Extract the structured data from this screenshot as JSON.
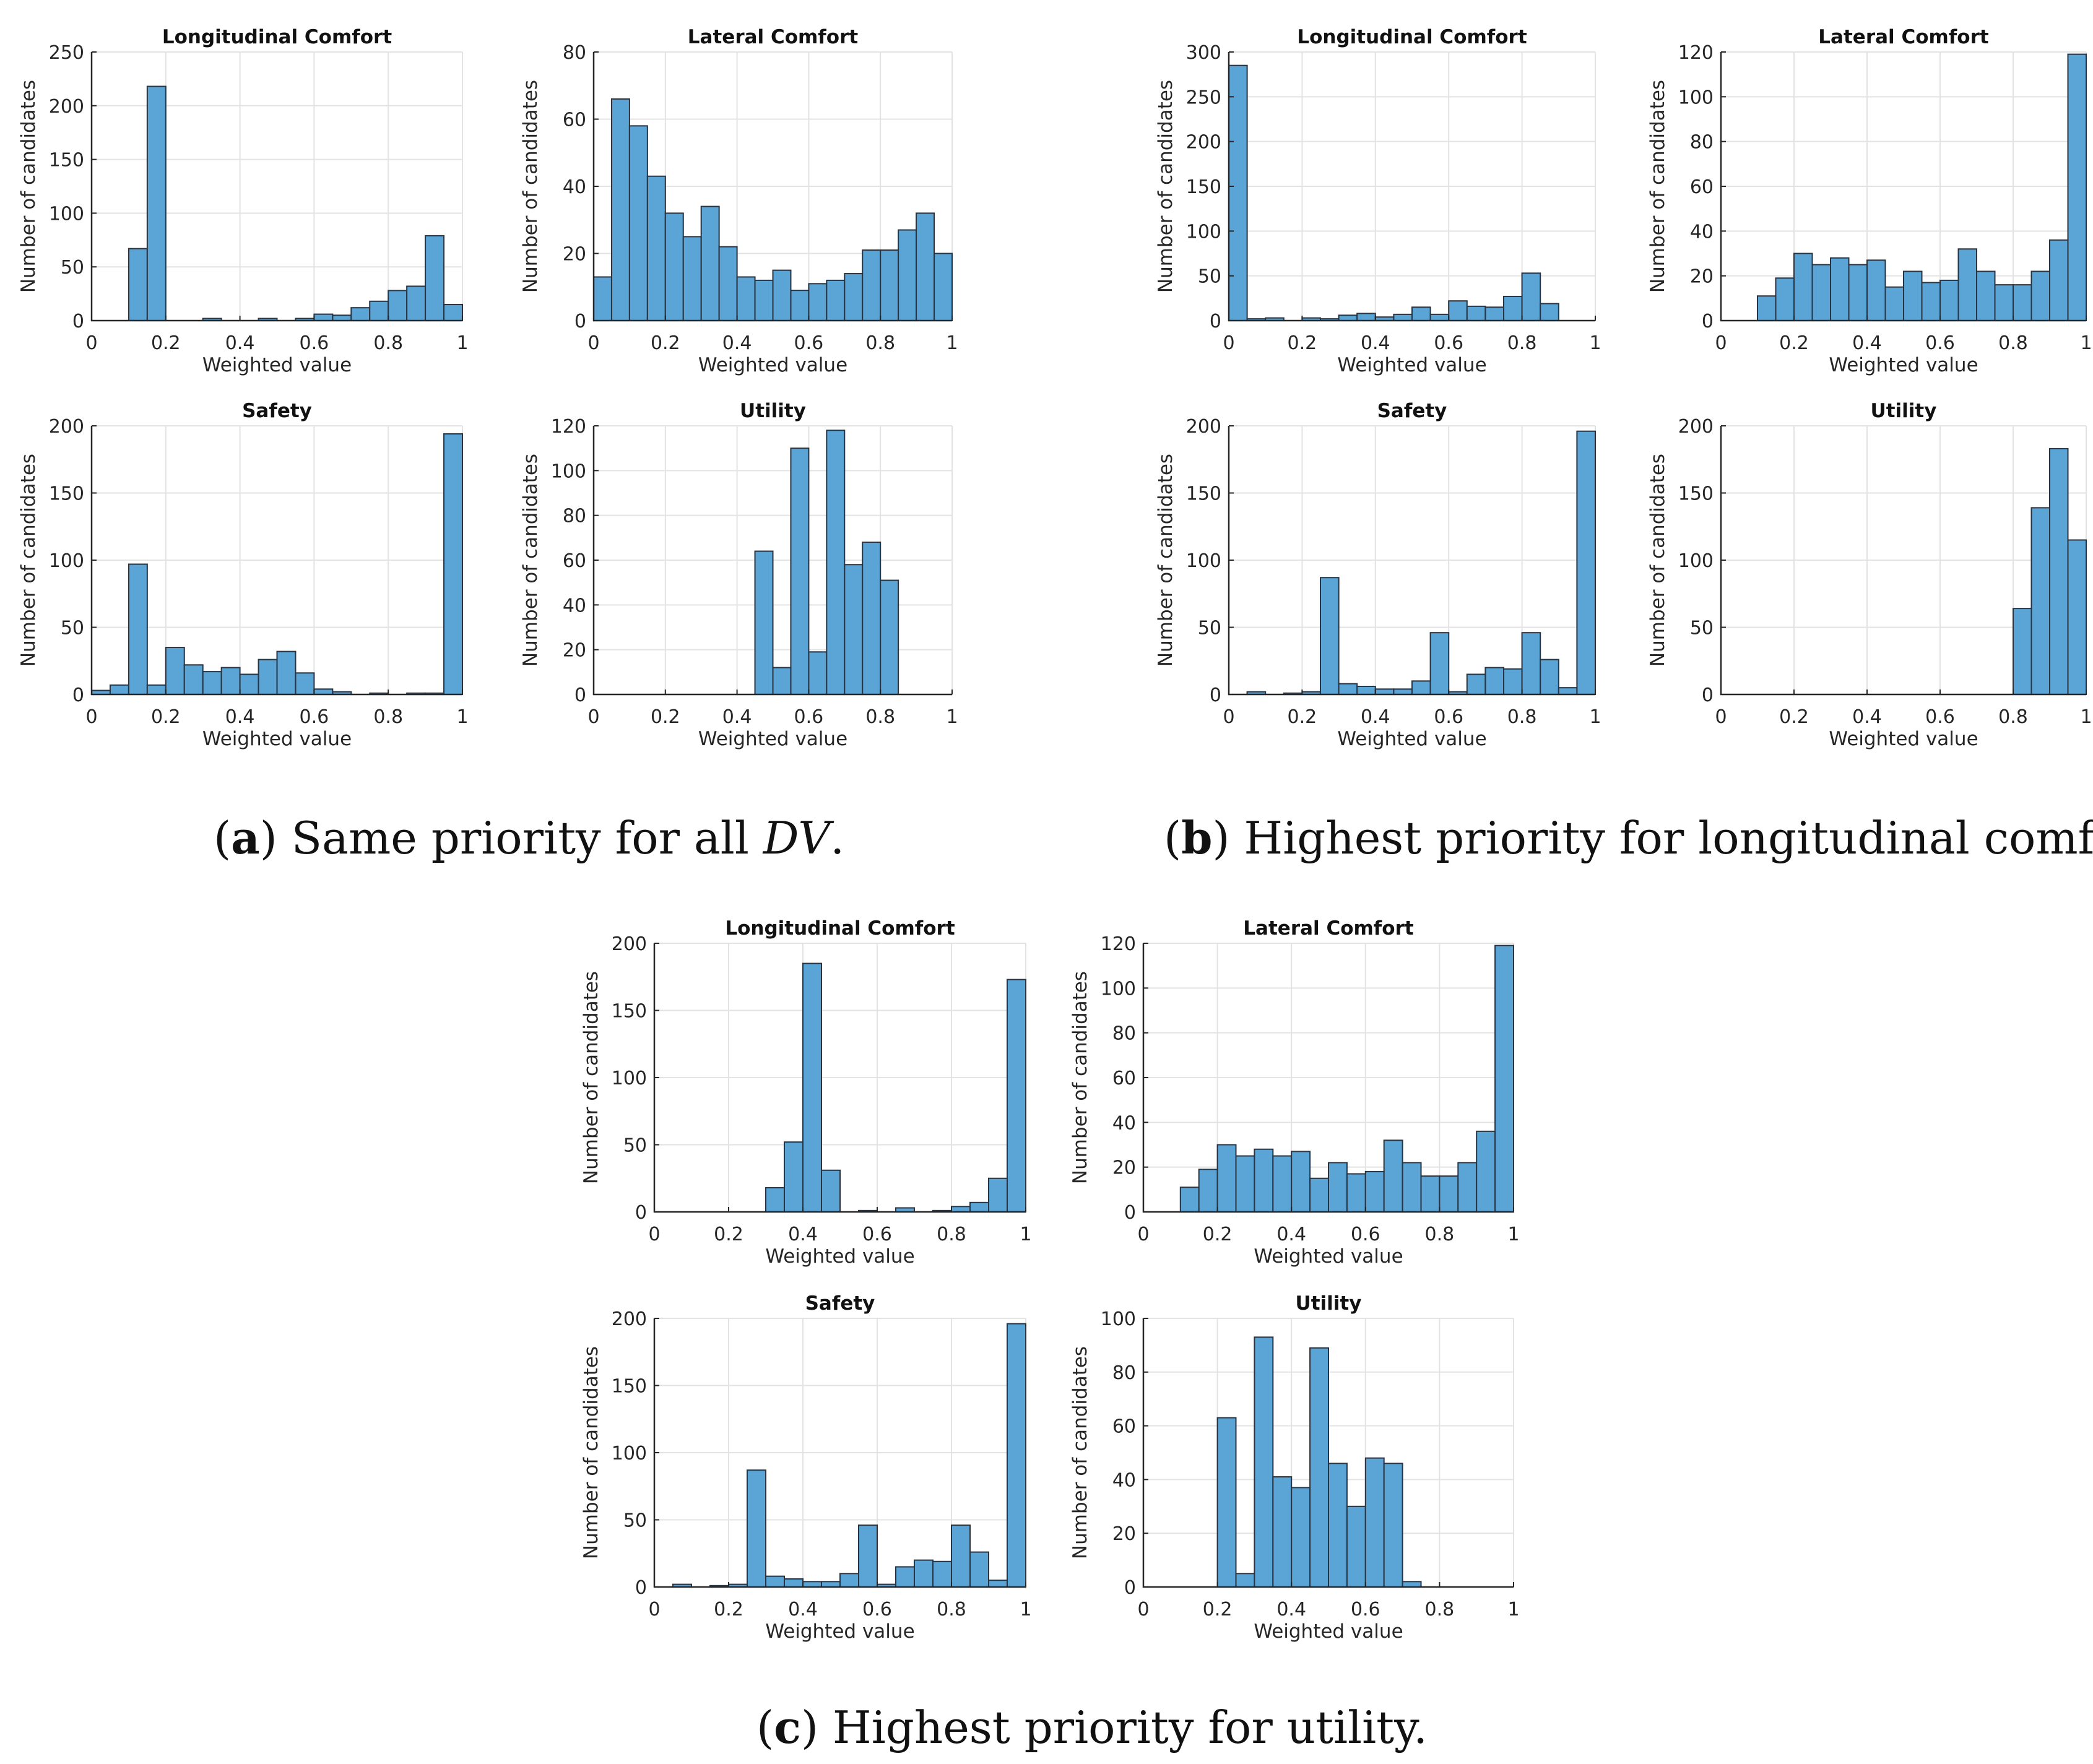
{
  "style": {
    "bar_fill": "#5ba4d6",
    "bar_stroke": "#2a3440",
    "grid": "#e3e3e3",
    "axis": "#262626",
    "text": "#262626"
  },
  "captions": {
    "a": {
      "letter": "a",
      "text": "Same priority for all",
      "math": "DV",
      "end": "."
    },
    "b": {
      "letter": "b",
      "text": "Highest priority for longitudinal comfort."
    },
    "c": {
      "letter": "c",
      "text": "Highest priority for utility."
    }
  },
  "chart_data": [
    {
      "id": "a-longitudinal",
      "group": "a",
      "type": "bar",
      "title": "Longitudinal Comfort",
      "xlabel": "Weighted value",
      "ylabel": "Number of candidates",
      "xlim": [
        0,
        1
      ],
      "ylim": [
        0,
        250
      ],
      "xticks": [
        0,
        0.2,
        0.4,
        0.6,
        0.8,
        1
      ],
      "yticks": [
        0,
        50,
        100,
        150,
        200,
        250
      ],
      "bin_start": 0,
      "bin_width": 0.05,
      "values": [
        0,
        0,
        67,
        218,
        0,
        0,
        2,
        0,
        0,
        2,
        0,
        2,
        6,
        5,
        12,
        18,
        28,
        32,
        79,
        15
      ]
    },
    {
      "id": "a-lateral",
      "group": "a",
      "type": "bar",
      "title": "Lateral Comfort",
      "xlabel": "Weighted value",
      "ylabel": "Number of candidates",
      "xlim": [
        0,
        1
      ],
      "ylim": [
        0,
        80
      ],
      "xticks": [
        0,
        0.2,
        0.4,
        0.6,
        0.8,
        1
      ],
      "yticks": [
        0,
        20,
        40,
        60,
        80
      ],
      "bin_start": 0,
      "bin_width": 0.05,
      "values": [
        13,
        66,
        58,
        43,
        32,
        25,
        34,
        22,
        13,
        12,
        15,
        9,
        11,
        12,
        14,
        21,
        21,
        27,
        32,
        20
      ]
    },
    {
      "id": "a-safety",
      "group": "a",
      "type": "bar",
      "title": "Safety",
      "xlabel": "Weighted value",
      "ylabel": "Number of candidates",
      "xlim": [
        0,
        1
      ],
      "ylim": [
        0,
        200
      ],
      "xticks": [
        0,
        0.2,
        0.4,
        0.6,
        0.8,
        1
      ],
      "yticks": [
        0,
        50,
        100,
        150,
        200
      ],
      "bin_start": 0,
      "bin_width": 0.05,
      "values": [
        3,
        7,
        97,
        7,
        35,
        22,
        17,
        20,
        15,
        26,
        32,
        16,
        4,
        2,
        0,
        1,
        0,
        1,
        1,
        194
      ]
    },
    {
      "id": "a-utility",
      "group": "a",
      "type": "bar",
      "title": "Utility",
      "xlabel": "Weighted value",
      "ylabel": "Number of candidates",
      "xlim": [
        0,
        1
      ],
      "ylim": [
        0,
        120
      ],
      "xticks": [
        0,
        0.2,
        0.4,
        0.6,
        0.8,
        1
      ],
      "yticks": [
        0,
        20,
        40,
        60,
        80,
        100,
        120
      ],
      "bin_start": 0,
      "bin_width": 0.05,
      "values": [
        0,
        0,
        0,
        0,
        0,
        0,
        0,
        0,
        0,
        64,
        12,
        110,
        19,
        118,
        58,
        68,
        51,
        0,
        0,
        0
      ]
    },
    {
      "id": "b-longitudinal",
      "group": "b",
      "type": "bar",
      "title": "Longitudinal Comfort",
      "xlabel": "Weighted value",
      "ylabel": "Number of candidates",
      "xlim": [
        0,
        1
      ],
      "ylim": [
        0,
        300
      ],
      "xticks": [
        0,
        0.2,
        0.4,
        0.6,
        0.8,
        1
      ],
      "yticks": [
        0,
        50,
        100,
        150,
        200,
        250,
        300
      ],
      "bin_start": 0,
      "bin_width": 0.05,
      "values": [
        285,
        2,
        3,
        0,
        3,
        2,
        6,
        8,
        4,
        7,
        15,
        7,
        22,
        16,
        15,
        27,
        53,
        19,
        0,
        0
      ]
    },
    {
      "id": "b-lateral",
      "group": "b",
      "type": "bar",
      "title": "Lateral Comfort",
      "xlabel": "Weighted value",
      "ylabel": "Number of candidates",
      "xlim": [
        0,
        1
      ],
      "ylim": [
        0,
        120
      ],
      "xticks": [
        0,
        0.2,
        0.4,
        0.6,
        0.8,
        1
      ],
      "yticks": [
        0,
        20,
        40,
        60,
        80,
        100,
        120
      ],
      "bin_start": 0,
      "bin_width": 0.05,
      "values": [
        0,
        0,
        11,
        19,
        30,
        25,
        28,
        25,
        27,
        15,
        22,
        17,
        18,
        32,
        22,
        16,
        16,
        22,
        36,
        119
      ]
    },
    {
      "id": "b-safety",
      "group": "b",
      "type": "bar",
      "title": "Safety",
      "xlabel": "Weighted value",
      "ylabel": "Number of candidates",
      "xlim": [
        0,
        1
      ],
      "ylim": [
        0,
        200
      ],
      "xticks": [
        0,
        0.2,
        0.4,
        0.6,
        0.8,
        1
      ],
      "yticks": [
        0,
        50,
        100,
        150,
        200
      ],
      "bin_start": 0,
      "bin_width": 0.05,
      "values": [
        0,
        2,
        0,
        1,
        2,
        87,
        8,
        6,
        4,
        4,
        10,
        46,
        2,
        15,
        20,
        19,
        46,
        26,
        5,
        196
      ]
    },
    {
      "id": "b-utility",
      "group": "b",
      "type": "bar",
      "title": "Utility",
      "xlabel": "Weighted value",
      "ylabel": "Number of candidates",
      "xlim": [
        0,
        1
      ],
      "ylim": [
        0,
        200
      ],
      "xticks": [
        0,
        0.2,
        0.4,
        0.6,
        0.8,
        1
      ],
      "yticks": [
        0,
        50,
        100,
        150,
        200
      ],
      "bin_start": 0,
      "bin_width": 0.05,
      "values": [
        0,
        0,
        0,
        0,
        0,
        0,
        0,
        0,
        0,
        0,
        0,
        0,
        0,
        0,
        0,
        0,
        64,
        139,
        183,
        115
      ]
    },
    {
      "id": "c-longitudinal",
      "group": "c",
      "type": "bar",
      "title": "Longitudinal Comfort",
      "xlabel": "Weighted value",
      "ylabel": "Number of candidates",
      "xlim": [
        0,
        1
      ],
      "ylim": [
        0,
        200
      ],
      "xticks": [
        0,
        0.2,
        0.4,
        0.6,
        0.8,
        1
      ],
      "yticks": [
        0,
        50,
        100,
        150,
        200
      ],
      "bin_start": 0,
      "bin_width": 0.05,
      "values": [
        0,
        0,
        0,
        0,
        0,
        0,
        18,
        52,
        185,
        31,
        0,
        1,
        0,
        3,
        0,
        1,
        4,
        7,
        25,
        173
      ]
    },
    {
      "id": "c-lateral",
      "group": "c",
      "type": "bar",
      "title": "Lateral Comfort",
      "xlabel": "Weighted value",
      "ylabel": "Number of candidates",
      "xlim": [
        0,
        1
      ],
      "ylim": [
        0,
        120
      ],
      "xticks": [
        0,
        0.2,
        0.4,
        0.6,
        0.8,
        1
      ],
      "yticks": [
        0,
        20,
        40,
        60,
        80,
        100,
        120
      ],
      "bin_start": 0,
      "bin_width": 0.05,
      "values": [
        0,
        0,
        11,
        19,
        30,
        25,
        28,
        25,
        27,
        15,
        22,
        17,
        18,
        32,
        22,
        16,
        16,
        22,
        36,
        119
      ]
    },
    {
      "id": "c-safety",
      "group": "c",
      "type": "bar",
      "title": "Safety",
      "xlabel": "Weighted value",
      "ylabel": "Number of candidates",
      "xlim": [
        0,
        1
      ],
      "ylim": [
        0,
        200
      ],
      "xticks": [
        0,
        0.2,
        0.4,
        0.6,
        0.8,
        1
      ],
      "yticks": [
        0,
        50,
        100,
        150,
        200
      ],
      "bin_start": 0,
      "bin_width": 0.05,
      "values": [
        0,
        2,
        0,
        1,
        2,
        87,
        8,
        6,
        4,
        4,
        10,
        46,
        2,
        15,
        20,
        19,
        46,
        26,
        5,
        196
      ]
    },
    {
      "id": "c-utility",
      "group": "c",
      "type": "bar",
      "title": "Utility",
      "xlabel": "Weighted value",
      "ylabel": "Number of candidates",
      "xlim": [
        0,
        1
      ],
      "ylim": [
        0,
        100
      ],
      "xticks": [
        0,
        0.2,
        0.4,
        0.6,
        0.8,
        1
      ],
      "yticks": [
        0,
        20,
        40,
        60,
        80,
        100
      ],
      "bin_start": 0,
      "bin_width": 0.05,
      "values": [
        0,
        0,
        0,
        0,
        63,
        5,
        93,
        41,
        37,
        89,
        46,
        30,
        48,
        46,
        2,
        0,
        0,
        0,
        0,
        0
      ]
    }
  ]
}
